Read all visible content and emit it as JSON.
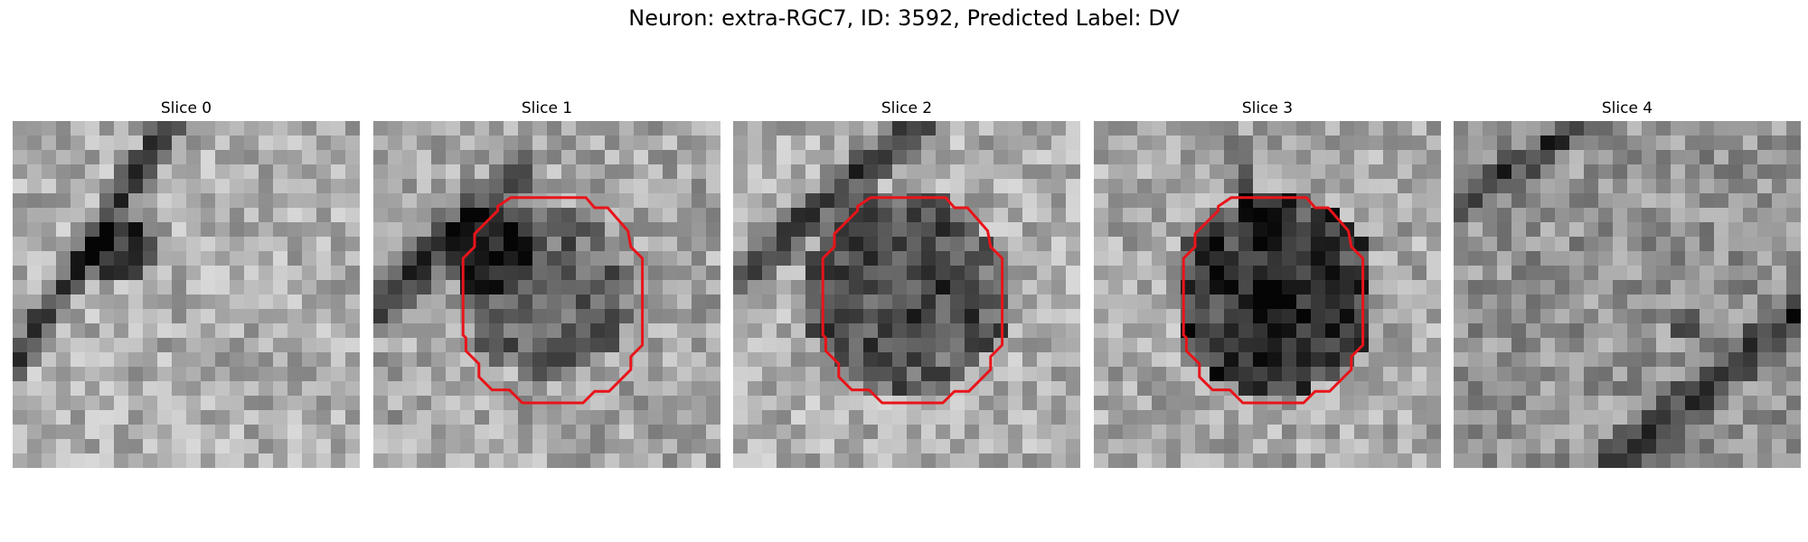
{
  "figure": {
    "title": "Neuron: extra-RGC7, ID: 3592, Predicted Label: DV"
  },
  "colors": {
    "contour": "#e8141a",
    "background": "#ffffff"
  },
  "grid": {
    "rows": 24,
    "cols": 24
  },
  "panels": [
    {
      "title": "Slice 0",
      "has_contour": false,
      "dark_features": [
        {
          "kind": "line",
          "a": [
            11,
            0
          ],
          "b": [
            0,
            17
          ],
          "width": 1.4,
          "strength": 0.55
        },
        {
          "kind": "blob",
          "c": [
            7.5,
            9
          ],
          "r": 2.2,
          "strength": 0.55
        }
      ],
      "base_tone": 0.68,
      "seed": 11
    },
    {
      "title": "Slice 1",
      "has_contour": true,
      "dark_features": [
        {
          "kind": "line",
          "a": [
            10,
            4
          ],
          "b": [
            0,
            13
          ],
          "width": 2.2,
          "strength": 0.45
        },
        {
          "kind": "blob",
          "c": [
            12,
            12
          ],
          "r": 6,
          "strength": 0.28
        },
        {
          "kind": "blob",
          "c": [
            8,
            9
          ],
          "r": 3,
          "strength": 0.35
        }
      ],
      "base_tone": 0.65,
      "seed": 23
    },
    {
      "title": "Slice 2",
      "has_contour": true,
      "dark_features": [
        {
          "kind": "line",
          "a": [
            13,
            0
          ],
          "b": [
            0,
            11
          ],
          "width": 1.8,
          "strength": 0.5
        },
        {
          "kind": "blob",
          "c": [
            12,
            12
          ],
          "r": 7,
          "strength": 0.42
        }
      ],
      "base_tone": 0.68,
      "seed": 37
    },
    {
      "title": "Slice 3",
      "has_contour": true,
      "dark_features": [
        {
          "kind": "blob",
          "c": [
            12.5,
            12
          ],
          "r": 7,
          "strength": 0.55
        },
        {
          "kind": "line",
          "a": [
            9,
            0
          ],
          "b": [
            11,
            6
          ],
          "width": 1.2,
          "strength": 0.25
        }
      ],
      "base_tone": 0.66,
      "seed": 53
    },
    {
      "title": "Slice 4",
      "has_contour": false,
      "dark_features": [
        {
          "kind": "line",
          "a": [
            9,
            0
          ],
          "b": [
            0,
            6
          ],
          "width": 1.6,
          "strength": 0.4
        },
        {
          "kind": "line",
          "a": [
            24,
            13
          ],
          "b": [
            11,
            24
          ],
          "width": 2.0,
          "strength": 0.45
        },
        {
          "kind": "blob",
          "c": [
            16,
            14
          ],
          "r": 1.5,
          "strength": 0.35
        }
      ],
      "base_tone": 0.58,
      "seed": 71
    }
  ],
  "contour_polygon": [
    [
      9.5,
      5.3
    ],
    [
      14.7,
      5.3
    ],
    [
      15.3,
      6.0
    ],
    [
      16.2,
      6.0
    ],
    [
      17.6,
      7.6
    ],
    [
      17.8,
      8.7
    ],
    [
      18.6,
      9.5
    ],
    [
      18.6,
      15.5
    ],
    [
      17.8,
      16.3
    ],
    [
      17.8,
      17.2
    ],
    [
      16.3,
      18.7
    ],
    [
      15.3,
      18.7
    ],
    [
      14.5,
      19.5
    ],
    [
      10.3,
      19.5
    ],
    [
      9.4,
      18.6
    ],
    [
      8.2,
      18.6
    ],
    [
      7.3,
      17.7
    ],
    [
      7.3,
      16.8
    ],
    [
      6.4,
      15.9
    ],
    [
      6.4,
      15.0
    ],
    [
      6.2,
      14.8
    ],
    [
      6.2,
      9.5
    ],
    [
      7.0,
      8.7
    ],
    [
      7.0,
      7.8
    ],
    [
      8.6,
      6.2
    ],
    [
      8.6,
      5.9
    ]
  ]
}
